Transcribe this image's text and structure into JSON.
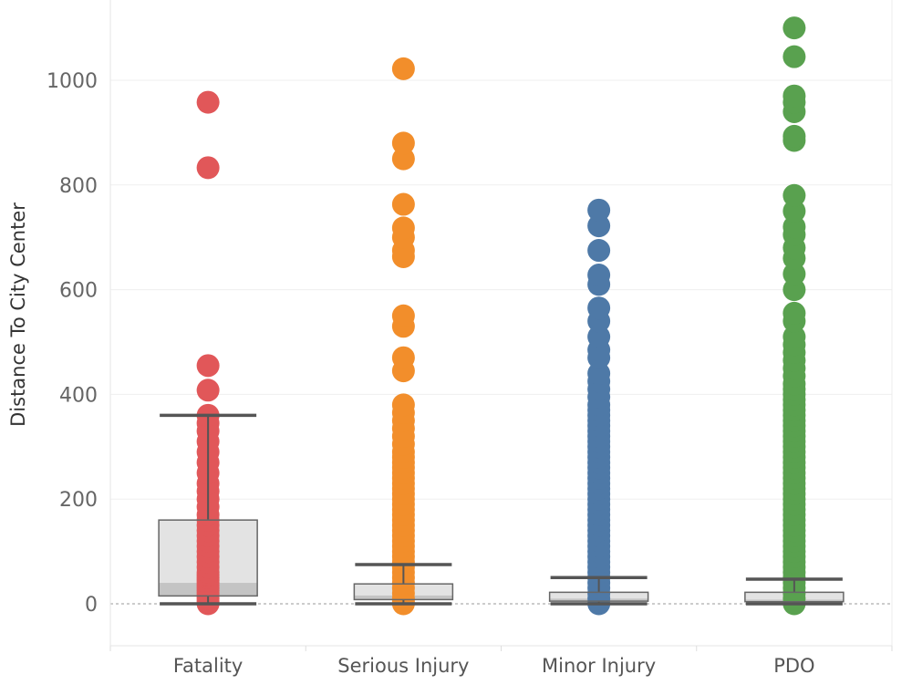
{
  "chart_data": {
    "type": "box-scatter",
    "title": "",
    "xlabel": "",
    "ylabel": "Distance To City Center",
    "ylim": [
      -80,
      1110
    ],
    "yticks": [
      0,
      200,
      400,
      600,
      800,
      1000
    ],
    "grid": true,
    "legend": "none",
    "categories": [
      "Fatality",
      "Serious Injury",
      "Minor Injury",
      "PDO"
    ],
    "series": [
      {
        "category": "Fatality",
        "color": "#e15759",
        "box": {
          "whisker_low": 0,
          "q1": 15,
          "median": 40,
          "q3": 160,
          "whisker_high": 360
        },
        "points": [
          0,
          5,
          10,
          15,
          20,
          25,
          30,
          35,
          40,
          45,
          50,
          55,
          60,
          70,
          80,
          90,
          100,
          110,
          120,
          130,
          140,
          150,
          160,
          170,
          185,
          200,
          215,
          230,
          250,
          270,
          290,
          310,
          330,
          345,
          360,
          408,
          455,
          833,
          958
        ]
      },
      {
        "category": "Serious Injury",
        "color": "#f28e2b",
        "box": {
          "whisker_low": 0,
          "q1": 8,
          "median": 16,
          "q3": 38,
          "whisker_high": 75
        },
        "points": [
          0,
          5,
          10,
          20,
          30,
          40,
          50,
          60,
          70,
          80,
          90,
          100,
          110,
          120,
          130,
          140,
          150,
          160,
          170,
          180,
          190,
          200,
          210,
          220,
          230,
          240,
          250,
          260,
          270,
          280,
          290,
          305,
          320,
          335,
          350,
          365,
          380,
          445,
          470,
          530,
          550,
          663,
          675,
          700,
          718,
          763,
          850,
          880,
          1022
        ]
      },
      {
        "category": "Minor Injury",
        "color": "#4e79a7",
        "box": {
          "whisker_low": 0,
          "q1": 5,
          "median": 10,
          "q3": 22,
          "whisker_high": 50
        },
        "points": [
          0,
          10,
          20,
          30,
          40,
          50,
          60,
          70,
          80,
          90,
          100,
          110,
          120,
          130,
          140,
          150,
          160,
          170,
          180,
          190,
          200,
          210,
          220,
          230,
          240,
          250,
          260,
          270,
          280,
          290,
          300,
          310,
          320,
          330,
          340,
          350,
          360,
          370,
          380,
          395,
          410,
          425,
          440,
          470,
          485,
          510,
          540,
          565,
          610,
          628,
          675,
          722,
          752
        ]
      },
      {
        "category": "PDO",
        "color": "#59a14f",
        "box": {
          "whisker_low": 0,
          "q1": 4,
          "median": 8,
          "q3": 22,
          "whisker_high": 47
        },
        "points": [
          0,
          10,
          20,
          30,
          40,
          50,
          60,
          70,
          80,
          90,
          100,
          110,
          120,
          130,
          140,
          150,
          160,
          170,
          180,
          190,
          200,
          210,
          220,
          230,
          240,
          250,
          260,
          270,
          280,
          290,
          300,
          310,
          320,
          330,
          340,
          350,
          360,
          370,
          380,
          390,
          400,
          410,
          420,
          435,
          450,
          465,
          480,
          495,
          510,
          540,
          555,
          600,
          630,
          660,
          680,
          705,
          720,
          750,
          780,
          885,
          893,
          940,
          958,
          970,
          1045,
          1100
        ]
      }
    ]
  }
}
